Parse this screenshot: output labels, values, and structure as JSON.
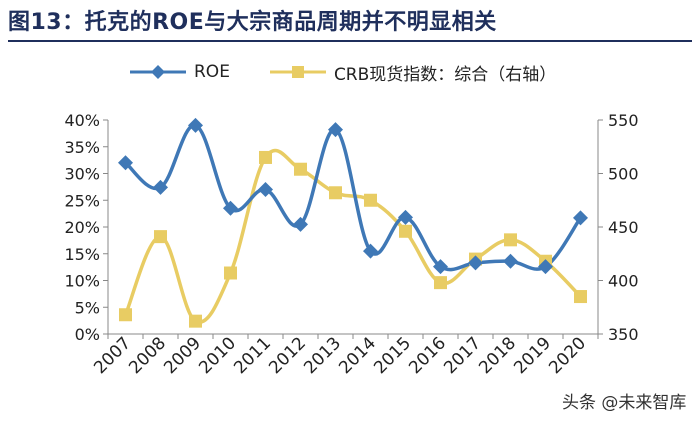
{
  "title": "图13：托克的ROE与大宗商品周期并不明显相关",
  "watermark": "头条 @未来智库",
  "colors": {
    "roe": "#3f78b6",
    "crb": "#e8cc63",
    "title": "#1f2f5c"
  },
  "chart_data": {
    "type": "line",
    "title": "图13：托克的ROE与大宗商品周期并不明显相关",
    "xlabel": "",
    "ylabel": "",
    "categories": [
      "2007",
      "2008",
      "2009",
      "2010",
      "2011",
      "2012",
      "2013",
      "2014",
      "2015",
      "2016",
      "2017",
      "2018",
      "2019",
      "2020"
    ],
    "series": [
      {
        "name": "ROE",
        "axis": "left",
        "marker": "diamond",
        "color": "#3f78b6",
        "values": [
          0.32,
          0.274,
          0.39,
          0.235,
          0.27,
          0.205,
          0.382,
          0.155,
          0.218,
          0.126,
          0.133,
          0.136,
          0.126,
          0.217
        ]
      },
      {
        "name": "CRB现货指数：综合（右轴）",
        "axis": "right",
        "marker": "square",
        "color": "#e8cc63",
        "values": [
          368,
          441,
          362,
          407,
          515,
          504,
          482,
          475,
          446,
          398,
          420,
          438,
          418,
          385
        ]
      }
    ],
    "y_left": {
      "range": [
        0,
        0.4
      ],
      "ticks": [
        0,
        0.05,
        0.1,
        0.15,
        0.2,
        0.25,
        0.3,
        0.35,
        0.4
      ],
      "tick_labels": [
        "0%",
        "5%",
        "10%",
        "15%",
        "20%",
        "25%",
        "30%",
        "35%",
        "40%"
      ]
    },
    "y_right": {
      "range": [
        350,
        550
      ],
      "ticks": [
        350,
        400,
        450,
        500,
        550
      ],
      "tick_labels": [
        "350",
        "400",
        "450",
        "500",
        "550"
      ]
    },
    "grid": false,
    "legend_position": "top"
  }
}
